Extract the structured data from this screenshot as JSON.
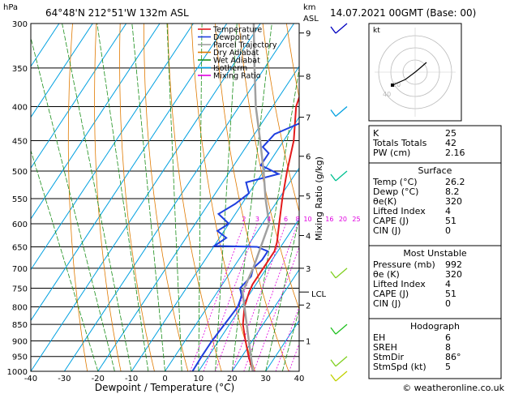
{
  "header": {
    "location": "64°48'N  212°51'W  132m  ASL",
    "datetime": "14.07.2021  00GMT  (Base: 00)"
  },
  "axes": {
    "left_unit": "hPa",
    "right_unit_top": "km",
    "right_unit_bottom": "ASL",
    "xlabel": "Dewpoint / Temperature (°C)",
    "mixing_ratio_label": "Mixing Ratio (g/kg)",
    "lcl_label": "LCL",
    "xlim": [
      -40,
      40
    ]
  },
  "legend": [
    {
      "label": "Temperature",
      "color": "#e31a1c"
    },
    {
      "label": "Dewpoint",
      "color": "#1f3fe0"
    },
    {
      "label": "Parcel Trajectory",
      "color": "#a0a0a0"
    },
    {
      "label": "Dry Adiabat",
      "color": "#e07a00"
    },
    {
      "label": "Wet Adiabat",
      "color": "#1a8f1a"
    },
    {
      "label": "Isotherm",
      "color": "#00a0e0"
    },
    {
      "label": "Mixing Ratio",
      "color": "#e000e0"
    }
  ],
  "chart_data": {
    "type": "line",
    "xlabel": "Dewpoint / Temperature (°C)",
    "ylabel": "hPa",
    "pressure_ticks": [
      300,
      350,
      400,
      450,
      500,
      550,
      600,
      650,
      700,
      750,
      800,
      850,
      900,
      950,
      1000
    ],
    "temp_ticks": [
      -40,
      -30,
      -20,
      -10,
      0,
      10,
      20,
      30,
      40
    ],
    "km_ticks": [
      {
        "label": "9",
        "p": 310
      },
      {
        "label": "8",
        "p": 360
      },
      {
        "label": "7",
        "p": 415
      },
      {
        "label": "6",
        "p": 475
      },
      {
        "label": "5",
        "p": 545
      },
      {
        "label": "4",
        "p": 625
      },
      {
        "label": "3",
        "p": 700
      },
      {
        "label": "2",
        "p": 795
      },
      {
        "label": "1",
        "p": 900
      }
    ],
    "mixing_ratio_values": [
      "2",
      "3",
      "4",
      "6",
      "8",
      "10",
      "16",
      "20",
      "25"
    ],
    "series": [
      {
        "name": "Temperature",
        "color": "#e31a1c",
        "points": [
          [
            26.2,
            1000
          ],
          [
            22,
            950
          ],
          [
            18,
            900
          ],
          [
            14,
            850
          ],
          [
            11,
            800
          ],
          [
            9.5,
            760
          ],
          [
            9,
            740
          ],
          [
            9,
            700
          ],
          [
            9,
            660
          ],
          [
            8,
            640
          ],
          [
            5,
            600
          ],
          [
            1,
            550
          ],
          [
            -3,
            500
          ],
          [
            -7,
            450
          ],
          [
            -13,
            400
          ],
          [
            -16,
            360
          ],
          [
            -20,
            330
          ],
          [
            -24,
            300
          ]
        ]
      },
      {
        "name": "Dewpoint",
        "color": "#1f3fe0",
        "points": [
          [
            8.2,
            1000
          ],
          [
            8,
            950
          ],
          [
            8,
            900
          ],
          [
            8.5,
            850
          ],
          [
            9,
            800
          ],
          [
            8,
            770
          ],
          [
            6,
            750
          ],
          [
            7,
            720
          ],
          [
            6,
            700
          ],
          [
            7,
            680
          ],
          [
            7,
            660
          ],
          [
            3,
            650
          ],
          [
            -10,
            648
          ],
          [
            -8,
            630
          ],
          [
            -12,
            615
          ],
          [
            -10,
            600
          ],
          [
            -15,
            580
          ],
          [
            -12,
            560
          ],
          [
            -10,
            540
          ],
          [
            -13,
            520
          ],
          [
            -5,
            505
          ],
          [
            -12,
            490
          ],
          [
            -12,
            470
          ],
          [
            -15,
            460
          ],
          [
            -14,
            440
          ],
          [
            -4,
            410
          ],
          [
            -6,
            400
          ],
          [
            -5,
            385
          ],
          [
            -14,
            375
          ],
          [
            -14,
            350
          ],
          [
            -8,
            340
          ],
          [
            -8,
            320
          ],
          [
            -9,
            300
          ]
        ]
      },
      {
        "name": "Parcel Trajectory",
        "color": "#a0a0a0",
        "points": [
          [
            26.2,
            1000
          ],
          [
            19,
            900
          ],
          [
            11,
            800
          ],
          [
            7.5,
            760
          ],
          [
            6,
            700
          ],
          [
            2,
            600
          ],
          [
            -4,
            550
          ],
          [
            -10,
            500
          ],
          [
            -17,
            450
          ],
          [
            -25,
            400
          ],
          [
            -33,
            350
          ],
          [
            -42,
            300
          ]
        ]
      }
    ],
    "wind_barbs": [
      {
        "p": 300,
        "color": "#0000c0"
      },
      {
        "p": 400,
        "color": "#00a0e0"
      },
      {
        "p": 500,
        "color": "#00c090"
      },
      {
        "p": 700,
        "color": "#80d020"
      },
      {
        "p": 850,
        "color": "#20c020"
      },
      {
        "p": 950,
        "color": "#80d020"
      },
      {
        "p": 1000,
        "color": "#c0d000"
      }
    ]
  },
  "hodograph": {
    "unit_label": "kt",
    "ring_labels": [
      "20",
      "40"
    ]
  },
  "indices": [
    {
      "label": "K",
      "value": "25"
    },
    {
      "label": "Totals Totals",
      "value": "42"
    },
    {
      "label": "PW (cm)",
      "value": "2.16"
    }
  ],
  "surface": {
    "title": "Surface",
    "rows": [
      {
        "label": "Temp (°C)",
        "value": "26.2"
      },
      {
        "label": "Dewp (°C)",
        "value": "8.2"
      },
      {
        "label": "θe(K)",
        "value": "320"
      },
      {
        "label": "Lifted Index",
        "value": "4"
      },
      {
        "label": "CAPE (J)",
        "value": "51"
      },
      {
        "label": "CIN (J)",
        "value": "0"
      }
    ]
  },
  "most_unstable": {
    "title": "Most Unstable",
    "rows": [
      {
        "label": "Pressure (mb)",
        "value": "992"
      },
      {
        "label": "θe (K)",
        "value": "320"
      },
      {
        "label": "Lifted Index",
        "value": "4"
      },
      {
        "label": "CAPE (J)",
        "value": "51"
      },
      {
        "label": "CIN (J)",
        "value": "0"
      }
    ]
  },
  "hodograph_table": {
    "title": "Hodograph",
    "rows": [
      {
        "label": "EH",
        "value": "6"
      },
      {
        "label": "SREH",
        "value": "8"
      },
      {
        "label": "StmDir",
        "value": "86°"
      },
      {
        "label": "StmSpd (kt)",
        "value": "5"
      }
    ]
  },
  "footer": "© weatheronline.co.uk"
}
